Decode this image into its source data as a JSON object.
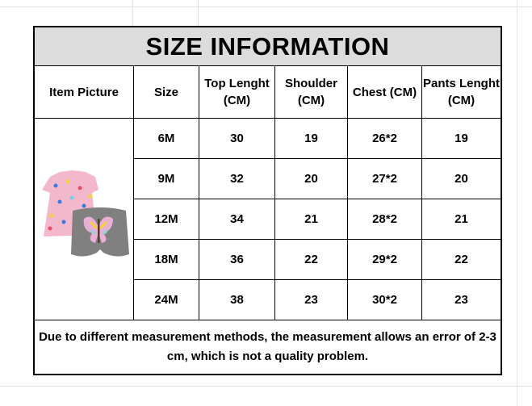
{
  "title": "SIZE INFORMATION",
  "headers": [
    "Item Picture",
    "Size",
    "Top Lenght (CM)",
    "Shoulder (CM)",
    "Chest (CM)",
    "Pants Lenght (CM)"
  ],
  "rows": [
    [
      "6M",
      "30",
      "19",
      "26*2",
      "19"
    ],
    [
      "9M",
      "32",
      "20",
      "27*2",
      "20"
    ],
    [
      "12M",
      "34",
      "21",
      "28*2",
      "21"
    ],
    [
      "18M",
      "36",
      "22",
      "29*2",
      "22"
    ],
    [
      "24M",
      "38",
      "23",
      "30*2",
      "23"
    ]
  ],
  "footer": "Due to different measurement methods, the measurement allows an error of 2-3 cm, which is not a quality problem.",
  "colors": {
    "title_bg": "#dcdcdc",
    "dress": "#f4b8cc",
    "shorts": "#808080"
  }
}
